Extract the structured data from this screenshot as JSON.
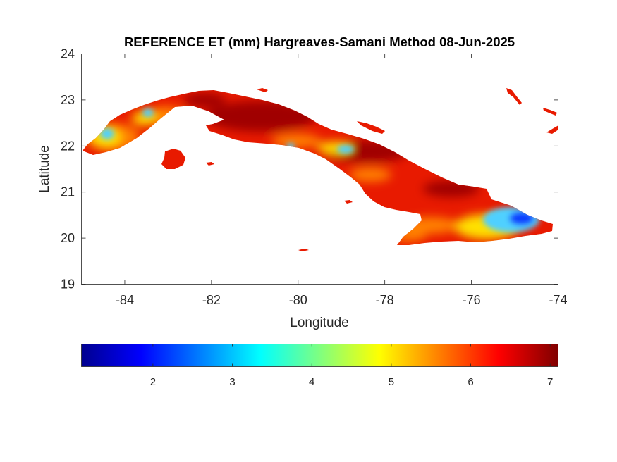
{
  "figure": {
    "title": "REFERENCE ET (mm) Hargreaves-Samani Method  08-Jun-2025",
    "xlabel": "Longitude",
    "ylabel": "Latitude"
  },
  "map_axes": {
    "xlim": [
      -85,
      -74
    ],
    "ylim": [
      19,
      24
    ],
    "xticks": [
      -84,
      -82,
      -80,
      -78,
      -76,
      -74
    ],
    "xtick_labels": [
      "-84",
      "-82",
      "-80",
      "-78",
      "-76",
      "-74"
    ],
    "yticks": [
      19,
      20,
      21,
      22,
      23,
      24
    ],
    "ytick_labels": [
      "19",
      "20",
      "21",
      "22",
      "23",
      "24"
    ],
    "grid": false,
    "box": true
  },
  "colorbar": {
    "colormap": "jet",
    "range": [
      1.1,
      7.1
    ],
    "ticks": [
      2,
      3,
      4,
      5,
      6,
      7
    ],
    "tick_labels": [
      "2",
      "3",
      "4",
      "5",
      "6",
      "7"
    ],
    "location": "southoutside"
  },
  "colors": {
    "background": "#ffffff",
    "axis": "#262626",
    "land_dominant": "#e81a00",
    "land_high": "#a00000",
    "land_mid": "#ff8000",
    "land_low": "#ffe000",
    "cool_spot": "#50d0ff",
    "cold_spot": "#1040ff"
  }
}
